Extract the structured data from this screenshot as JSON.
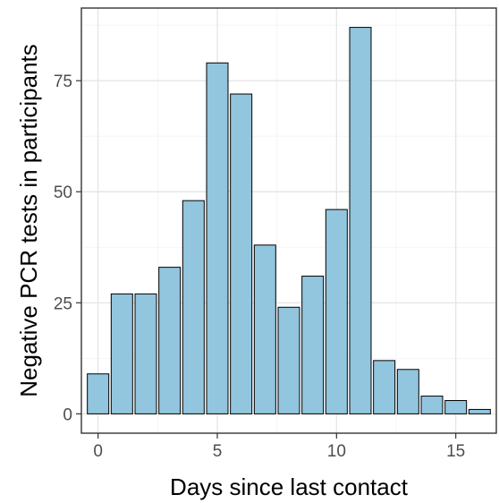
{
  "chart_data": {
    "type": "bar",
    "xlabel": "Days since last contact",
    "ylabel": "Negative PCR tests in participants",
    "x": [
      0,
      1,
      2,
      3,
      4,
      5,
      6,
      7,
      8,
      9,
      10,
      11,
      12,
      13,
      14,
      15,
      16
    ],
    "values": [
      9,
      27,
      27,
      33,
      48,
      79,
      72,
      38,
      24,
      31,
      46,
      87,
      12,
      10,
      4,
      3,
      1
    ],
    "xlim": [
      -0.7,
      16.7
    ],
    "ylim": [
      -4.35,
      91.35
    ],
    "x_ticks": [
      0,
      5,
      10,
      15
    ],
    "y_ticks": [
      0,
      25,
      50,
      75
    ],
    "x_tick_labels": [
      "0",
      "5",
      "10",
      "15"
    ],
    "y_tick_labels": [
      "0",
      "25",
      "50",
      "75"
    ],
    "grid": true,
    "bar_fill": "#92c5de",
    "bar_outline": "#000000",
    "panel_border": "#333333"
  }
}
